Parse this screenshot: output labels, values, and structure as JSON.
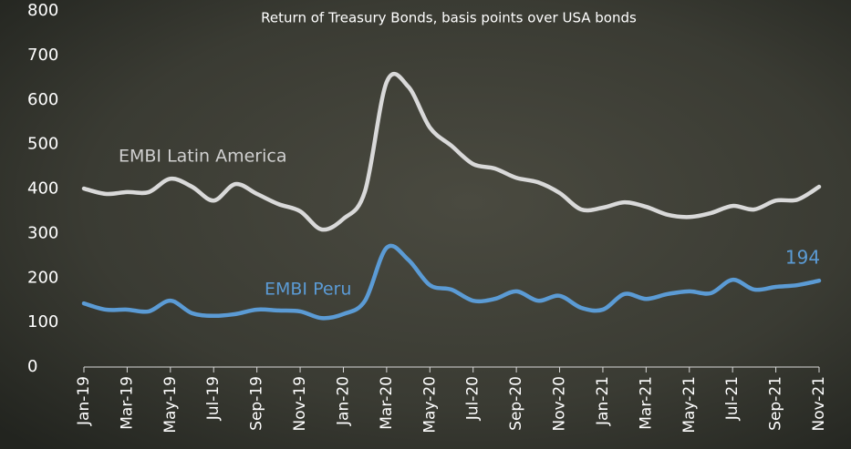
{
  "chart_data": {
    "type": "line",
    "title": "Return of Treasury Bonds, basis points over USA bonds",
    "categories": [
      "Jan-19",
      null,
      "Mar-19",
      null,
      "May-19",
      null,
      "Jul-19",
      null,
      "Sep-19",
      null,
      "Nov-19",
      null,
      "Jan-20",
      null,
      "Mar-20",
      null,
      "May-20",
      null,
      "Jul-20",
      null,
      "Sep-20",
      null,
      "Nov-20",
      null,
      "Jan-21",
      null,
      "Mar-21",
      null,
      "May-21",
      null,
      "Jul-21",
      null,
      "Sep-21",
      null,
      "Nov-21"
    ],
    "series": [
      {
        "name": "EMBI Latin America",
        "color": "#d9d9d9",
        "values": [
          401,
          389,
          393,
          393,
          423,
          405,
          374,
          411,
          389,
          366,
          350,
          309,
          333,
          395,
          640,
          630,
          538,
          497,
          456,
          446,
          425,
          415,
          391,
          354,
          358,
          370,
          360,
          342,
          337,
          346,
          362,
          354,
          374,
          376,
          405
        ]
      },
      {
        "name": "EMBI Peru",
        "color": "#5b9bd5",
        "values": [
          143,
          129,
          129,
          125,
          149,
          121,
          115,
          119,
          129,
          127,
          125,
          110,
          119,
          149,
          268,
          241,
          184,
          174,
          149,
          153,
          170,
          149,
          160,
          133,
          129,
          164,
          153,
          164,
          170,
          166,
          196,
          174,
          180,
          184,
          194
        ]
      }
    ],
    "ylim": [
      0,
      800
    ],
    "yticks": [
      0,
      100,
      200,
      300,
      400,
      500,
      600,
      700,
      800
    ],
    "grid": false
  }
}
